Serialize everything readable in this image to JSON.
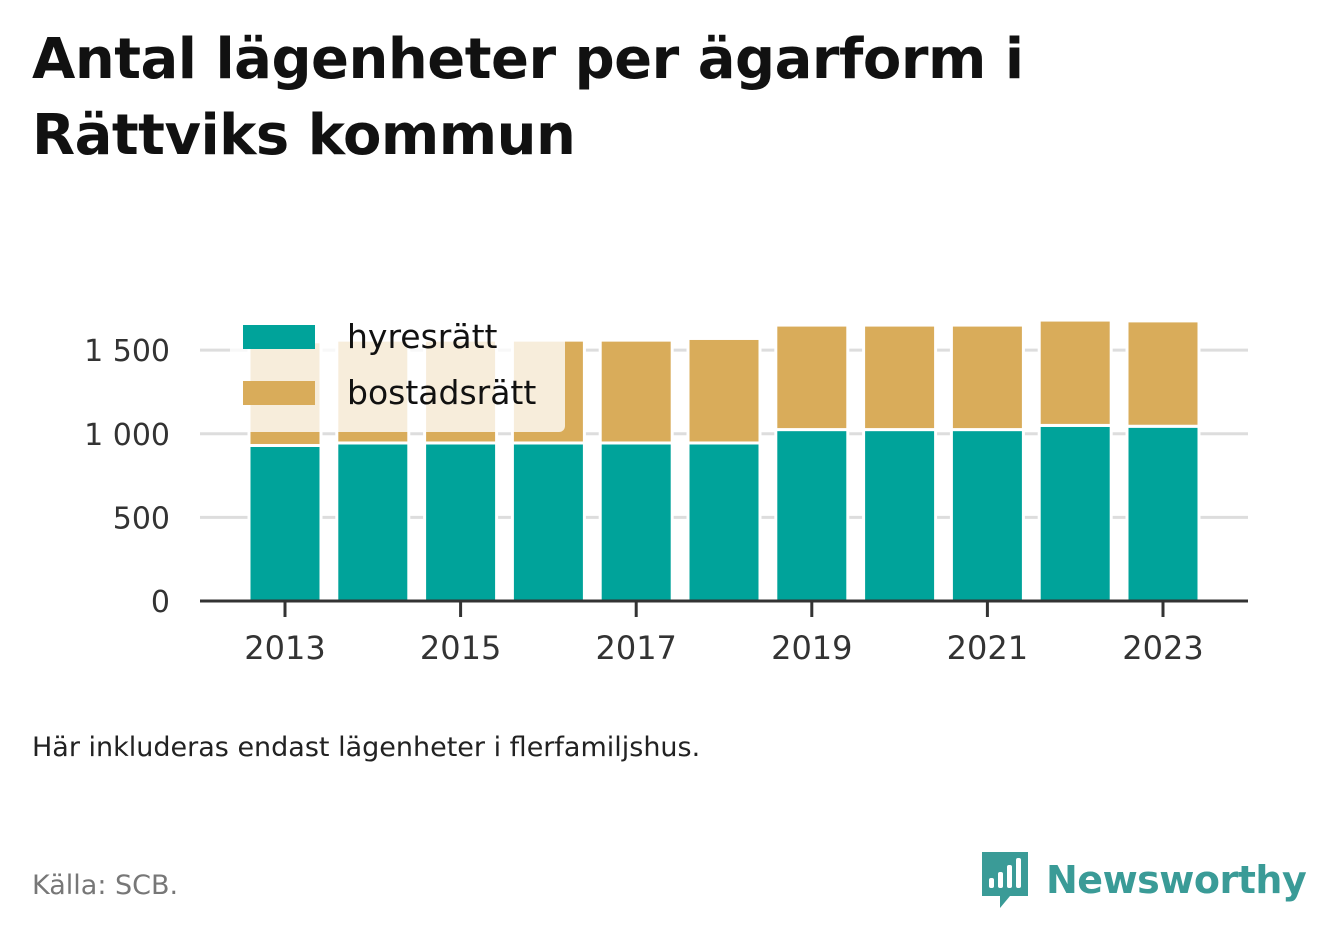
{
  "title": "Antal lägenheter per ägarform i Rättviks kommun",
  "note": "Här inkluderas endast lägenheter i flerfamiljshus.",
  "source": "Källa: SCB.",
  "brand": "Newsworthy",
  "colors": {
    "hyresratt": "#00a39a",
    "bostadsratt": "#d9ac5a",
    "grid": "#dddddd",
    "axis": "#333333",
    "brand": "#3a9b97"
  },
  "chart_data": {
    "type": "bar",
    "stacked": true,
    "categories": [
      "2013",
      "2014",
      "2015",
      "2016",
      "2017",
      "2018",
      "2019",
      "2020",
      "2021",
      "2022",
      "2023"
    ],
    "series": [
      {
        "name": "hyresrätt",
        "color": "#00a39a",
        "values": [
          930,
          945,
          945,
          945,
          945,
          945,
          1025,
          1025,
          1025,
          1050,
          1045
        ]
      },
      {
        "name": "bostadsrätt",
        "color": "#d9ac5a",
        "values": [
          620,
          615,
          615,
          615,
          615,
          625,
          625,
          625,
          625,
          630,
          630
        ]
      }
    ],
    "x_tick_labels": [
      "2013",
      "2015",
      "2017",
      "2019",
      "2021",
      "2023"
    ],
    "y_ticks": [
      0,
      500,
      1000,
      1500
    ],
    "y_tick_labels": [
      "0",
      "500",
      "1 000",
      "1 500"
    ],
    "ylim": [
      0,
      1800
    ],
    "grid": true,
    "legend_position": "top-left",
    "xlabel": "",
    "ylabel": ""
  }
}
